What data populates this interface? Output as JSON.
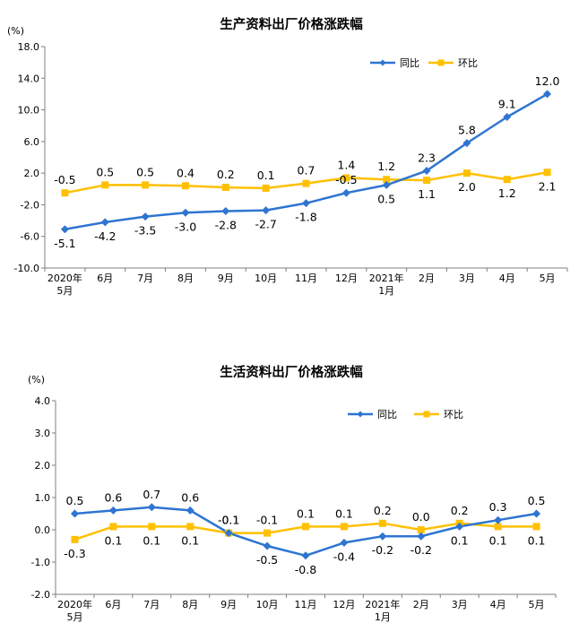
{
  "colors": {
    "yoy": "#2E75D1",
    "mom": "#FFC000"
  },
  "chart_data": [
    {
      "type": "line",
      "title": "生产资料出厂价格涨跌幅",
      "unit": "(%)",
      "categories": [
        [
          "2020年",
          "5月"
        ],
        [
          "6月"
        ],
        [
          "7月"
        ],
        [
          "8月"
        ],
        [
          "9月"
        ],
        [
          "10月"
        ],
        [
          "11月"
        ],
        [
          "12月"
        ],
        [
          "2021年",
          "1月"
        ],
        [
          "2月"
        ],
        [
          "3月"
        ],
        [
          "4月"
        ],
        [
          "5月"
        ]
      ],
      "ylim": [
        -10,
        18
      ],
      "yticks": [
        -10,
        -6,
        -2,
        2,
        6,
        10,
        14,
        18
      ],
      "ytick_labels": [
        "-10.0",
        "-6.0",
        "-2.0",
        "2.0",
        "6.0",
        "10.0",
        "14.0",
        "18.0"
      ],
      "legend_position": "top-right",
      "series": [
        {
          "name": "同比",
          "values": [
            -5.1,
            -4.2,
            -3.5,
            -3.0,
            -2.8,
            -2.7,
            -1.8,
            -0.5,
            0.5,
            2.3,
            5.8,
            9.1,
            12.0
          ],
          "labels": [
            "-5.1",
            "-4.2",
            "-3.5",
            "-3.0",
            "-2.8",
            "-2.7",
            "-1.8",
            "-0.5",
            "0.5",
            "2.3",
            "5.8",
            "9.1",
            "12.0"
          ]
        },
        {
          "name": "环比",
          "values": [
            -0.5,
            0.5,
            0.5,
            0.4,
            0.2,
            0.1,
            0.7,
            1.4,
            1.2,
            1.1,
            2.0,
            1.2,
            2.1
          ],
          "labels": [
            "-0.5",
            "0.5",
            "0.5",
            "0.4",
            "0.2",
            "0.1",
            "0.7",
            "1.4",
            "1.2",
            "1.1",
            "2.0",
            "1.2",
            "2.1"
          ]
        }
      ]
    },
    {
      "type": "line",
      "title": "生活资料出厂价格涨跌幅",
      "unit": "(%)",
      "categories": [
        [
          "2020年",
          "5月"
        ],
        [
          "6月"
        ],
        [
          "7月"
        ],
        [
          "8月"
        ],
        [
          "9月"
        ],
        [
          "10月"
        ],
        [
          "11月"
        ],
        [
          "12月"
        ],
        [
          "2021年",
          "1月"
        ],
        [
          "2月"
        ],
        [
          "3月"
        ],
        [
          "4月"
        ],
        [
          "5月"
        ]
      ],
      "ylim": [
        -2,
        4
      ],
      "yticks": [
        -2,
        -1,
        0,
        1,
        2,
        3,
        4
      ],
      "ytick_labels": [
        "-2.0",
        "-1.0",
        "0.0",
        "1.0",
        "2.0",
        "3.0",
        "4.0"
      ],
      "legend_position": "top-right",
      "series": [
        {
          "name": "同比",
          "values": [
            0.5,
            0.6,
            0.7,
            0.6,
            -0.1,
            -0.5,
            -0.8,
            -0.4,
            -0.2,
            -0.2,
            0.1,
            0.3,
            0.5
          ],
          "labels": [
            "0.5",
            "0.6",
            "0.7",
            "0.6",
            "-0.1",
            "-0.5",
            "-0.8",
            "-0.4",
            "-0.2",
            "-0.2",
            "0.1",
            "0.3",
            "0.5"
          ]
        },
        {
          "name": "环比",
          "values": [
            -0.3,
            0.1,
            0.1,
            0.1,
            -0.1,
            -0.1,
            0.1,
            0.1,
            0.2,
            0.0,
            0.2,
            0.1,
            0.1
          ],
          "labels": [
            "-0.3",
            "0.1",
            "0.1",
            "0.1",
            "-0.1",
            "-0.1",
            "0.1",
            "0.1",
            "0.2",
            "0.0",
            "0.2",
            "0.1",
            "0.1"
          ]
        }
      ]
    }
  ]
}
